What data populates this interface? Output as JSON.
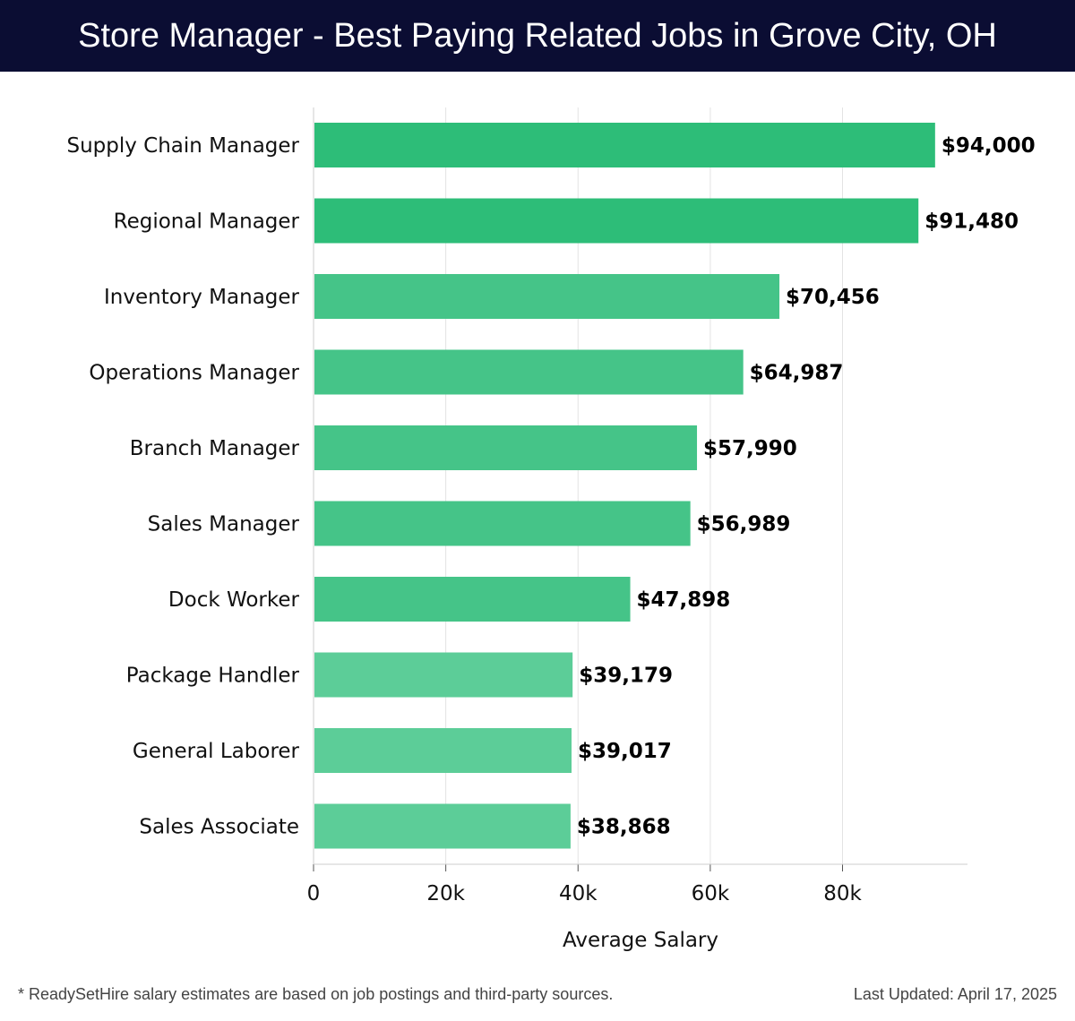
{
  "header": {
    "title": "Store Manager - Best Paying Related Jobs in Grove City, OH"
  },
  "footer": {
    "note": "* ReadySetHire salary estimates are based on job postings and third-party sources.",
    "updated": "Last Updated: April 17, 2025"
  },
  "colors": {
    "header_bg": "#0b0d33",
    "bar_dark": "#2dbd78",
    "bar_light": "#5ccd98",
    "gridline": "#e3e3e3"
  },
  "chart_data": {
    "type": "bar",
    "orientation": "horizontal",
    "title": "Store Manager - Best Paying Related Jobs in Grove City, OH",
    "xlabel": "Average Salary",
    "ylabel": "",
    "xlim": [
      0,
      98900
    ],
    "x_ticks": [
      0,
      20000,
      40000,
      60000,
      80000
    ],
    "x_tick_labels": [
      "0",
      "20k",
      "40k",
      "60k",
      "80k"
    ],
    "grid": true,
    "categories": [
      "Supply Chain Manager",
      "Regional Manager",
      "Inventory Manager",
      "Operations Manager",
      "Branch Manager",
      "Sales Manager",
      "Dock Worker",
      "Package Handler",
      "General Laborer",
      "Sales Associate"
    ],
    "values": [
      94000,
      91480,
      70456,
      64987,
      57990,
      56989,
      47898,
      39179,
      39017,
      38868
    ],
    "value_labels": [
      "$94,000",
      "$91,480",
      "$70,456",
      "$64,987",
      "$57,990",
      "$56,989",
      "$47,898",
      "$39,179",
      "$39,017",
      "$38,868"
    ]
  }
}
